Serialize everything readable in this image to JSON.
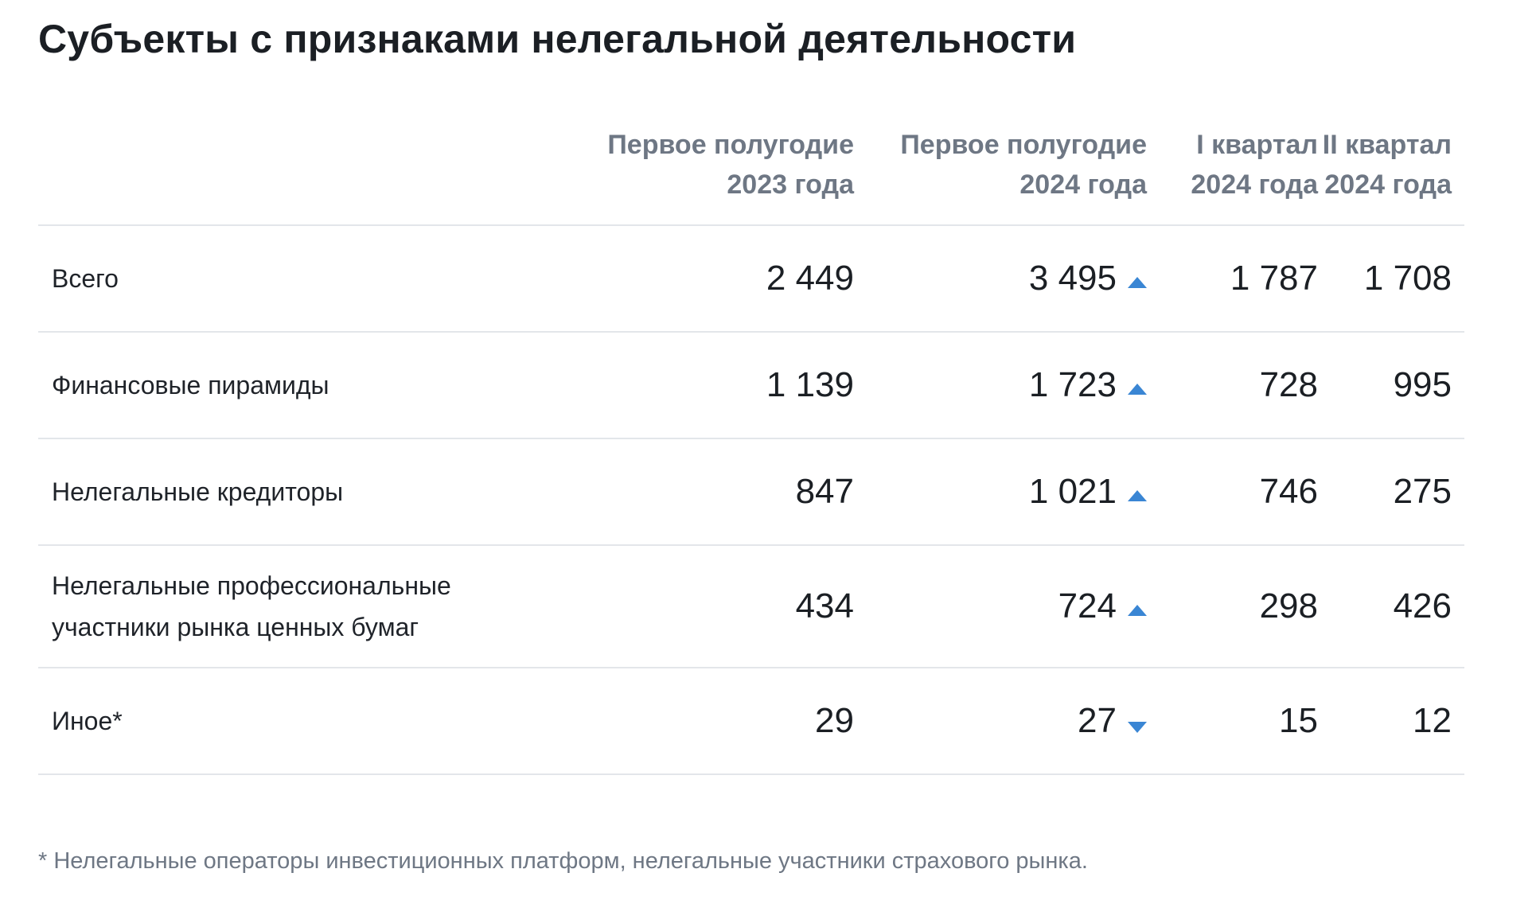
{
  "title": "Субъекты с признаками нелегальной деятельности",
  "table": {
    "columns": [
      {
        "line1": "Первое полугодие",
        "line2": "2023 года"
      },
      {
        "line1": "Первое полугодие",
        "line2": "2024 года"
      },
      {
        "line1": "I квартал",
        "line2": "2024 года"
      },
      {
        "line1": "II квартал",
        "line2": "2024 года"
      }
    ],
    "rows": [
      {
        "label": "Всего",
        "h1_2023": "2 449",
        "h1_2024": "3 495",
        "trend": "up",
        "q1_2024": "1 787",
        "q2_2024": "1 708"
      },
      {
        "label": "Финансовые пирамиды",
        "h1_2023": "1 139",
        "h1_2024": "1 723",
        "trend": "up",
        "q1_2024": "728",
        "q2_2024": "995"
      },
      {
        "label": "Нелегальные кредиторы",
        "h1_2023": "847",
        "h1_2024": "1 021",
        "trend": "up",
        "q1_2024": "746",
        "q2_2024": "275"
      },
      {
        "label": "Нелегальные профессиональные участники рынка ценных бумаг",
        "h1_2023": "434",
        "h1_2024": "724",
        "trend": "up",
        "q1_2024": "298",
        "q2_2024": "426"
      },
      {
        "label": "Иное*",
        "h1_2023": "29",
        "h1_2024": "27",
        "trend": "down",
        "q1_2024": "15",
        "q2_2024": "12"
      }
    ],
    "trend_icons": {
      "up": "triangle-up-icon",
      "down": "triangle-down-icon"
    },
    "trend_color": "#3a86d4"
  },
  "footnote": "* Нелегальные операторы инвестиционных платформ, нелегальные участники страхового рынка."
}
